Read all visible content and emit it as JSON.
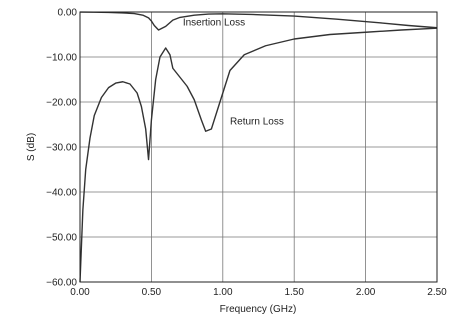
{
  "chart_data": {
    "type": "line",
    "xlabel": "Frequency (GHz)",
    "ylabel": "S (dB)",
    "xlim": [
      0,
      2.5
    ],
    "ylim": [
      -60,
      0
    ],
    "x_ticks": [
      0,
      0.5,
      1,
      1.5,
      2,
      2.5
    ],
    "x_tick_labels": [
      "0.00",
      "0.50",
      "1.00",
      "1.50",
      "2.00",
      "2.50"
    ],
    "y_ticks": [
      0,
      -10,
      -20,
      -30,
      -40,
      -50,
      -60
    ],
    "y_tick_labels": [
      "0.00",
      "−10.00",
      "−20.00",
      "−30.00",
      "−40.00",
      "−50.00",
      "−60.00"
    ],
    "grid": true,
    "series": [
      {
        "name": "Insertion Loss",
        "color": "#333333",
        "points": [
          [
            0.0,
            -0.02
          ],
          [
            0.1,
            -0.05
          ],
          [
            0.2,
            -0.1
          ],
          [
            0.3,
            -0.2
          ],
          [
            0.38,
            -0.35
          ],
          [
            0.44,
            -0.7
          ],
          [
            0.48,
            -1.3
          ],
          [
            0.5,
            -2.0
          ],
          [
            0.52,
            -3.0
          ],
          [
            0.55,
            -4.0
          ],
          [
            0.6,
            -3.2
          ],
          [
            0.65,
            -1.8
          ],
          [
            0.7,
            -1.2
          ],
          [
            0.8,
            -0.7
          ],
          [
            0.9,
            -0.45
          ],
          [
            1.0,
            -0.4
          ],
          [
            1.2,
            -0.55
          ],
          [
            1.5,
            -0.9
          ],
          [
            1.8,
            -1.6
          ],
          [
            2.1,
            -2.4
          ],
          [
            2.3,
            -3.0
          ],
          [
            2.5,
            -3.5
          ]
        ]
      },
      {
        "name": "Return Loss",
        "color": "#333333",
        "points": [
          [
            0.0,
            -60.0
          ],
          [
            0.01,
            -52.0
          ],
          [
            0.02,
            -44.0
          ],
          [
            0.04,
            -35.0
          ],
          [
            0.07,
            -28.0
          ],
          [
            0.1,
            -23.0
          ],
          [
            0.15,
            -19.0
          ],
          [
            0.2,
            -16.8
          ],
          [
            0.25,
            -15.8
          ],
          [
            0.3,
            -15.5
          ],
          [
            0.35,
            -16.0
          ],
          [
            0.4,
            -18.0
          ],
          [
            0.43,
            -21.0
          ],
          [
            0.46,
            -26.0
          ],
          [
            0.48,
            -32.8
          ],
          [
            0.5,
            -24.0
          ],
          [
            0.53,
            -15.0
          ],
          [
            0.56,
            -10.0
          ],
          [
            0.6,
            -8.0
          ],
          [
            0.63,
            -9.5
          ],
          [
            0.65,
            -12.5
          ],
          [
            0.7,
            -14.5
          ],
          [
            0.75,
            -16.5
          ],
          [
            0.8,
            -19.5
          ],
          [
            0.85,
            -24.0
          ],
          [
            0.88,
            -26.5
          ],
          [
            0.92,
            -26.0
          ],
          [
            0.97,
            -21.0
          ],
          [
            1.05,
            -13.0
          ],
          [
            1.15,
            -9.5
          ],
          [
            1.3,
            -7.5
          ],
          [
            1.5,
            -6.0
          ],
          [
            1.75,
            -5.0
          ],
          [
            2.0,
            -4.5
          ],
          [
            2.25,
            -4.0
          ],
          [
            2.5,
            -3.6
          ]
        ]
      }
    ],
    "annotations": [
      {
        "text": "Insertion Loss",
        "x": 0.72,
        "y": -3.0
      },
      {
        "text": "Return Loss",
        "x": 1.05,
        "y": -25.0
      }
    ]
  }
}
